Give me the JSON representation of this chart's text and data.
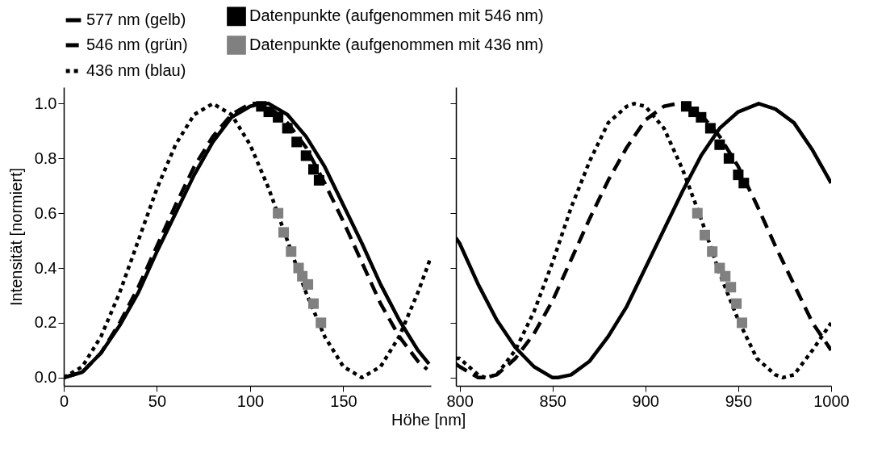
{
  "chart_data": [
    {
      "type": "line",
      "ylabel": "Intensität [normiert]",
      "xlabel": "Höhe [nm]",
      "xlim": [
        0,
        197
      ],
      "xticks": [
        0,
        50,
        100,
        150
      ],
      "ylim": [
        -0.03,
        1.06
      ],
      "yticks": [
        {
          "value": 0,
          "label": "0.0"
        },
        {
          "value": 0.2,
          "label": "0.2"
        },
        {
          "value": 0.4,
          "label": "0.4"
        },
        {
          "value": 0.6,
          "label": "0.6"
        },
        {
          "value": 0.8,
          "label": "0.8"
        },
        {
          "value": 1,
          "label": "1.0"
        }
      ],
      "legend": "top",
      "grid": false,
      "series": [
        {
          "name": "577 nm (gelb)",
          "color": "#000000",
          "line_style": "solid",
          "x": [
            0,
            10,
            20,
            30,
            40,
            50,
            60,
            70,
            80,
            90,
            100,
            106,
            110,
            120,
            130,
            140,
            150,
            160,
            170,
            180,
            190,
            196
          ],
          "values": [
            0,
            0.02,
            0.09,
            0.19,
            0.31,
            0.46,
            0.6,
            0.74,
            0.86,
            0.95,
            0.99,
            1,
            1,
            0.96,
            0.88,
            0.77,
            0.63,
            0.49,
            0.34,
            0.21,
            0.1,
            0.05
          ]
        },
        {
          "name": "Datenpunkte (aufgenommen mit 546 nm)",
          "type": "scatter",
          "marker": "square",
          "color": "#000000",
          "x": [
            106,
            110,
            115,
            120,
            125,
            130,
            134,
            137
          ],
          "values": [
            0.99,
            0.97,
            0.95,
            0.91,
            0.86,
            0.81,
            0.76,
            0.72
          ]
        },
        {
          "name": "546 nm (grün)",
          "color": "#000000",
          "line_style": "dashed",
          "x": [
            0,
            10,
            20,
            30,
            40,
            50,
            60,
            70,
            80,
            90,
            100,
            103,
            110,
            120,
            130,
            140,
            150,
            160,
            170,
            180,
            190,
            195
          ],
          "values": [
            0,
            0.02,
            0.09,
            0.2,
            0.33,
            0.48,
            0.63,
            0.77,
            0.88,
            0.96,
            1,
            1,
            0.99,
            0.93,
            0.84,
            0.71,
            0.57,
            0.42,
            0.27,
            0.15,
            0.06,
            0.03
          ]
        },
        {
          "name": "Datenpunkte (aufgenommen mit 436 nm)",
          "type": "scatter",
          "marker": "square",
          "color": "#808080",
          "x": [
            115,
            118,
            122,
            126,
            128,
            131,
            134,
            138
          ],
          "values": [
            0.6,
            0.53,
            0.46,
            0.4,
            0.37,
            0.34,
            0.27,
            0.2
          ]
        },
        {
          "name": "436 nm (blau)",
          "color": "#000000",
          "line_style": "dotted",
          "x": [
            0,
            10,
            20,
            30,
            40,
            50,
            60,
            70,
            80,
            90,
            100,
            110,
            120,
            130,
            140,
            150,
            160,
            170,
            180,
            190,
            197
          ],
          "values": [
            0,
            0.04,
            0.15,
            0.31,
            0.5,
            0.69,
            0.85,
            0.96,
            1,
            0.96,
            0.85,
            0.69,
            0.5,
            0.31,
            0.15,
            0.04,
            0,
            0.04,
            0.15,
            0.31,
            0.44
          ]
        }
      ]
    },
    {
      "type": "line",
      "xlim": [
        798,
        1000
      ],
      "xticks": [
        800,
        850,
        900,
        950,
        1000
      ],
      "ylim": [
        -0.03,
        1.06
      ],
      "yticks": [
        0,
        0.2,
        0.4,
        0.6,
        0.8,
        1
      ],
      "tick_labels": "x",
      "grid": false,
      "series": [
        {
          "color": "#000000",
          "line_style": "solid",
          "x": [
            798,
            800,
            810,
            820,
            830,
            840,
            850,
            853,
            860,
            870,
            880,
            890,
            900,
            910,
            920,
            930,
            940,
            950,
            961,
            970,
            980,
            990,
            1000
          ],
          "values": [
            0.51,
            0.49,
            0.34,
            0.21,
            0.11,
            0.04,
            0,
            0,
            0.01,
            0.06,
            0.15,
            0.26,
            0.4,
            0.54,
            0.68,
            0.81,
            0.91,
            0.97,
            1,
            0.98,
            0.93,
            0.83,
            0.71
          ]
        },
        {
          "type": "scatter",
          "marker": "square",
          "color": "#000000",
          "x": [
            922,
            926,
            930,
            935,
            940,
            945,
            950,
            953
          ],
          "values": [
            0.99,
            0.97,
            0.95,
            0.91,
            0.85,
            0.8,
            0.74,
            0.71
          ]
        },
        {
          "color": "#000000",
          "line_style": "dashed",
          "x": [
            798,
            800,
            810,
            813,
            820,
            830,
            840,
            850,
            860,
            870,
            880,
            890,
            900,
            910,
            917,
            920,
            930,
            940,
            950,
            960,
            970,
            980,
            990,
            1000
          ],
          "values": [
            0.05,
            0.04,
            0,
            0,
            0.01,
            0.07,
            0.16,
            0.28,
            0.43,
            0.58,
            0.72,
            0.84,
            0.94,
            0.99,
            1,
            1,
            0.96,
            0.88,
            0.77,
            0.63,
            0.48,
            0.34,
            0.2,
            0.1
          ]
        },
        {
          "type": "scatter",
          "marker": "square",
          "color": "#808080",
          "x": [
            928,
            932,
            936,
            940,
            943,
            946,
            949,
            952
          ],
          "values": [
            0.6,
            0.52,
            0.46,
            0.4,
            0.37,
            0.33,
            0.27,
            0.2
          ]
        },
        {
          "color": "#000000",
          "line_style": "dotted",
          "x": [
            798,
            800,
            810,
            814,
            820,
            830,
            840,
            850,
            860,
            870,
            880,
            890,
            894,
            900,
            910,
            920,
            930,
            940,
            950,
            960,
            970,
            974,
            980,
            990,
            1000
          ],
          "values": [
            0.07,
            0.07,
            0.01,
            0,
            0.01,
            0.1,
            0.24,
            0.42,
            0.62,
            0.79,
            0.93,
            0.99,
            1,
            0.99,
            0.91,
            0.76,
            0.58,
            0.38,
            0.21,
            0.07,
            0.01,
            0,
            0.01,
            0.1,
            0.2
          ]
        }
      ]
    }
  ]
}
